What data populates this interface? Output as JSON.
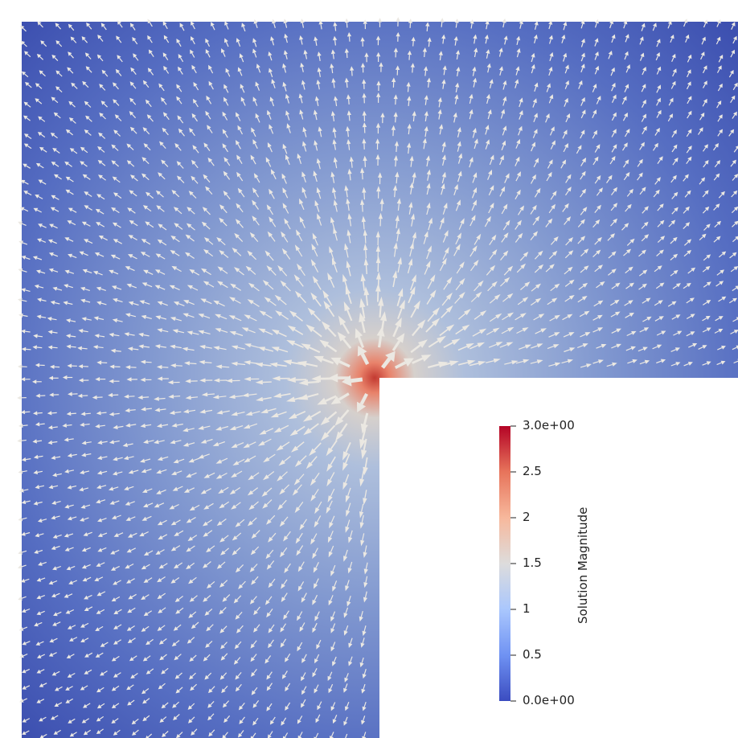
{
  "colorbar": {
    "title": "Solution Magnitude",
    "range": [
      0,
      3
    ],
    "ticks": [
      {
        "value": 3.0,
        "label": "3.0e+00"
      },
      {
        "value": 2.5,
        "label": "2.5"
      },
      {
        "value": 2.0,
        "label": "2"
      },
      {
        "value": 1.5,
        "label": "1.5"
      },
      {
        "value": 1.0,
        "label": "1"
      },
      {
        "value": 0.5,
        "label": "0.5"
      },
      {
        "value": 0.0,
        "label": "0.0e+00"
      }
    ],
    "colormap": [
      "#3b4cc0",
      "#6f92f3",
      "#aac7fd",
      "#dddcdc",
      "#f7b89c",
      "#e7745b",
      "#b40426"
    ]
  },
  "field": {
    "domain": "L-shaped",
    "glyph": "arrow",
    "glyph_color": "#ebe8e2",
    "singularity": "re-entrant corner",
    "flow": "radially outward from the re-entrant corner"
  }
}
